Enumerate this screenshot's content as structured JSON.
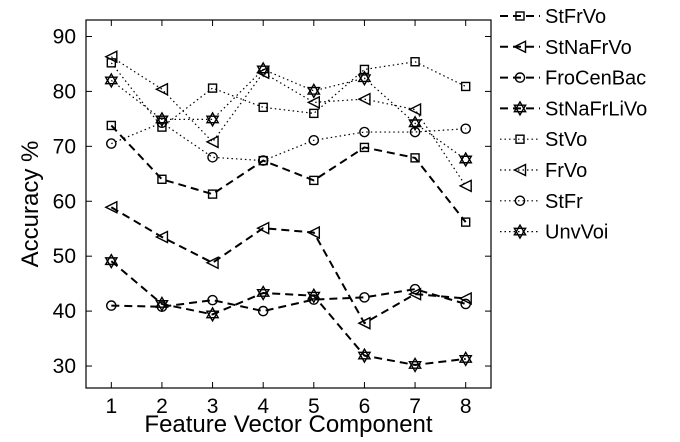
{
  "chart_data": {
    "type": "line",
    "title": "",
    "xlabel": "Feature Vector Component",
    "ylabel": "Accuracy %",
    "x": [
      1,
      2,
      3,
      4,
      5,
      6,
      7,
      8
    ],
    "xlim": [
      0.5,
      8.5
    ],
    "ylim": [
      26,
      93
    ],
    "xticks": [
      "1",
      "2",
      "3",
      "4",
      "5",
      "6",
      "7",
      "8"
    ],
    "yticks": [
      "30",
      "40",
      "50",
      "60",
      "70",
      "80",
      "90"
    ],
    "grid": false,
    "legend_position": "outside-right",
    "series": [
      {
        "name": "StFrVo",
        "line": "dashed",
        "marker": "square",
        "values": [
          73.8,
          64.0,
          61.3,
          67.4,
          63.8,
          69.8,
          67.9,
          56.2
        ]
      },
      {
        "name": "StNaFrVo",
        "line": "dashed",
        "marker": "triangle-left",
        "values": [
          58.9,
          53.5,
          48.8,
          55.1,
          54.3,
          37.8,
          43.1,
          42.3
        ]
      },
      {
        "name": "FroCenBac",
        "line": "dashed",
        "marker": "circle",
        "values": [
          41.0,
          40.8,
          42.0,
          40.0,
          42.1,
          42.5,
          44.0,
          41.3
        ]
      },
      {
        "name": "StNaFrLiVo",
        "line": "dashed",
        "marker": "star",
        "values": [
          49.1,
          41.3,
          39.4,
          43.3,
          42.8,
          31.9,
          30.2,
          31.3
        ]
      },
      {
        "name": "StVo",
        "line": "dotted",
        "marker": "square",
        "values": [
          85.2,
          73.5,
          80.6,
          77.1,
          76.0,
          84.0,
          85.4,
          80.9
        ]
      },
      {
        "name": "FrVo",
        "line": "dotted",
        "marker": "triangle-left",
        "values": [
          86.3,
          80.4,
          70.8,
          83.4,
          78.0,
          78.6,
          76.7,
          62.8
        ]
      },
      {
        "name": "StFr",
        "line": "dotted",
        "marker": "circle",
        "values": [
          70.5,
          74.3,
          68.0,
          67.4,
          71.1,
          72.6,
          72.6,
          73.2
        ]
      },
      {
        "name": "UnvVoi",
        "line": "dotted",
        "marker": "star",
        "values": [
          82.0,
          74.9,
          74.9,
          84.0,
          80.1,
          82.4,
          74.2,
          67.6
        ]
      }
    ],
    "colors": {
      "line": "#000000",
      "background": "#ffffff"
    }
  }
}
